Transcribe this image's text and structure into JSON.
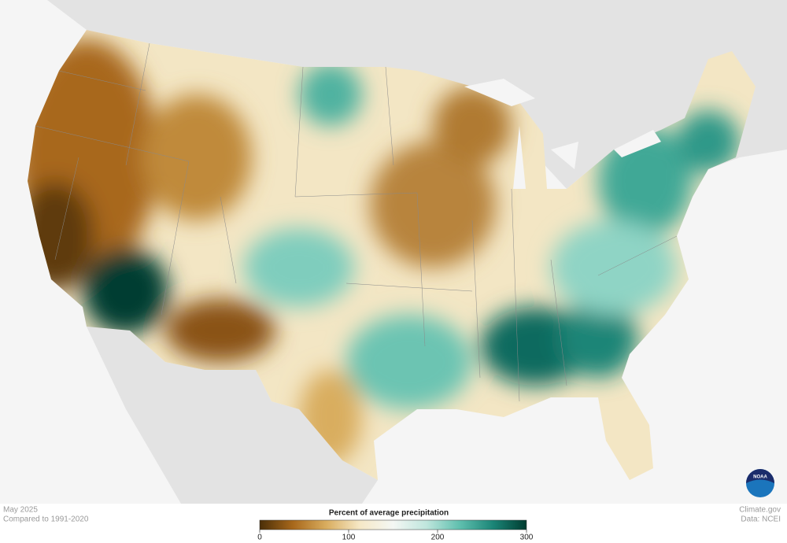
{
  "map": {
    "caption": {
      "date": "May 2025",
      "baseline": "Compared to 1991-2020"
    },
    "credit": {
      "site": "Climate.gov",
      "source": "Data: NCEI"
    },
    "logo": "NOAA",
    "legend": {
      "title": "Percent of average precipitation",
      "range": [
        0,
        300
      ],
      "ticks": [
        0,
        100,
        200,
        300
      ],
      "colors": [
        "#4a2e08",
        "#a8681b",
        "#d9ad5f",
        "#f6e8c6",
        "#f4f7f4",
        "#bfe6dd",
        "#5fbfae",
        "#1b8577",
        "#003c30"
      ]
    }
  }
}
